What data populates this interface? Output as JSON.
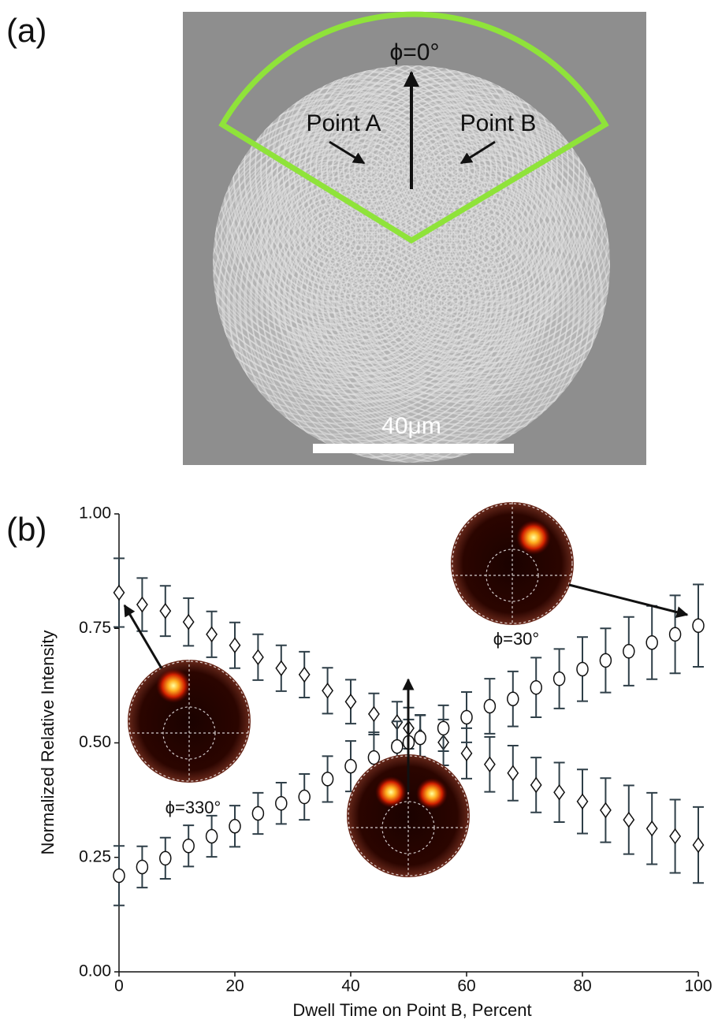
{
  "panel_labels": [
    "(a)",
    "(b)"
  ],
  "panel_a": {
    "phi_label": "ϕ=0°",
    "point_a": "Point A",
    "point_b": "Point B",
    "scale_bar": "40μm"
  },
  "chart_data": {
    "type": "scatter",
    "xlabel": "Dwell Time on Point B, Percent",
    "ylabel": "Normalized Relative Intensity",
    "x": [
      0,
      4,
      8,
      12,
      16,
      20,
      24,
      28,
      32,
      36,
      40,
      44,
      48,
      50,
      52,
      56,
      60,
      64,
      68,
      72,
      76,
      80,
      84,
      88,
      92,
      96,
      100
    ],
    "series": [
      {
        "marker": "diamond",
        "color": "#2f3f48",
        "values": [
          0.828,
          0.802,
          0.788,
          0.764,
          0.737,
          0.713,
          0.687,
          0.663,
          0.649,
          0.614,
          0.59,
          0.563,
          0.545,
          0.532,
          0.515,
          0.501,
          0.477,
          0.453,
          0.434,
          0.408,
          0.392,
          0.372,
          0.353,
          0.332,
          0.313,
          0.296,
          0.277
        ],
        "errors": [
          0.075,
          0.058,
          0.055,
          0.052,
          0.05,
          0.05,
          0.05,
          0.05,
          0.05,
          0.05,
          0.048,
          0.045,
          0.045,
          0.045,
          0.045,
          0.05,
          0.055,
          0.06,
          0.06,
          0.06,
          0.065,
          0.07,
          0.07,
          0.075,
          0.078,
          0.08,
          0.083
        ]
      },
      {
        "marker": "circle",
        "color": "#2f3f48",
        "values": [
          0.21,
          0.229,
          0.248,
          0.275,
          0.296,
          0.318,
          0.346,
          0.368,
          0.382,
          0.421,
          0.449,
          0.468,
          0.492,
          0.501,
          0.511,
          0.532,
          0.556,
          0.58,
          0.596,
          0.621,
          0.64,
          0.661,
          0.68,
          0.7,
          0.719,
          0.737,
          0.756
        ],
        "errors": [
          0.065,
          0.045,
          0.045,
          0.045,
          0.045,
          0.045,
          0.045,
          0.045,
          0.05,
          0.05,
          0.055,
          0.055,
          0.055,
          0.05,
          0.05,
          0.05,
          0.055,
          0.06,
          0.06,
          0.065,
          0.065,
          0.07,
          0.07,
          0.075,
          0.08,
          0.085,
          0.09
        ]
      }
    ],
    "xlim": [
      0,
      100
    ],
    "xticks": [
      0,
      20,
      40,
      60,
      80,
      100
    ],
    "ylim": [
      0,
      1
    ],
    "yticks": [
      {
        "value": 0,
        "label": "0.00"
      },
      {
        "value": 0.25,
        "label": "0.25"
      },
      {
        "value": 0.5,
        "label": "0.50"
      },
      {
        "value": 0.75,
        "label": "0.75"
      },
      {
        "value": 1,
        "label": "1.00"
      }
    ],
    "annotations": [
      "ϕ=330°",
      "ϕ=30°"
    ]
  }
}
